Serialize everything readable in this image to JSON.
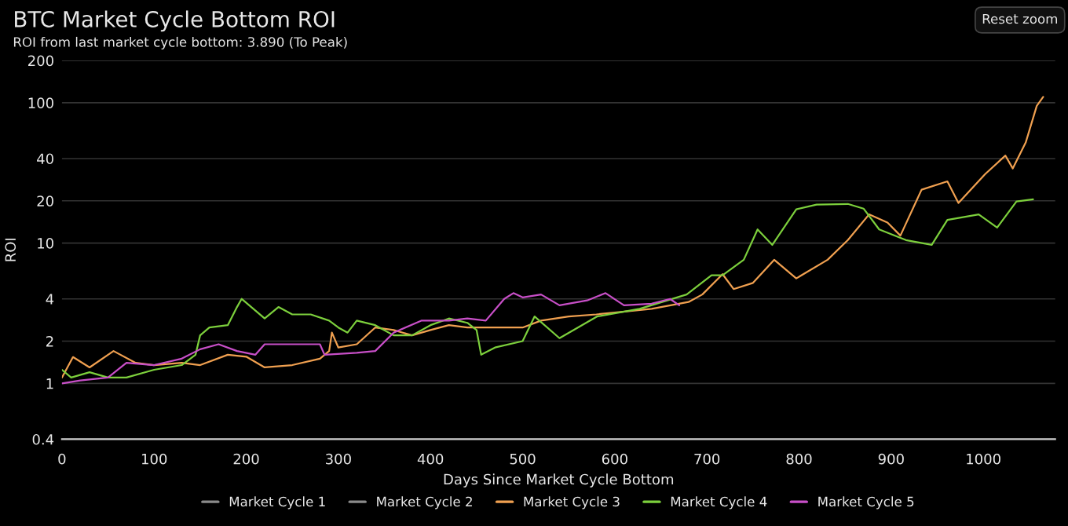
{
  "chart_data": {
    "type": "line",
    "title": "BTC Market Cycle Bottom ROI",
    "subtitle": "ROI from last market cycle bottom: 3.890 (To Peak)",
    "xlabel": "Days Since Market Cycle Bottom",
    "ylabel": "ROI",
    "annotations": [
      "Reset zoom"
    ],
    "log": "y",
    "grid": "y",
    "legend": "bottom",
    "line_style": "solid",
    "marker": "none",
    "xlim": [
      0,
      1078
    ],
    "xticks": [
      0,
      100,
      200,
      300,
      400,
      500,
      600,
      700,
      800,
      900,
      1000
    ],
    "ylim": [
      0.4,
      200
    ],
    "yticks": [
      0.4,
      1,
      2,
      4,
      10,
      20,
      40,
      100,
      200
    ],
    "series": [
      {
        "name": "Market Cycle 1",
        "color": "#8a8a8a"
      },
      {
        "name": "Market Cycle 2",
        "color": "#8a8a8a"
      },
      {
        "name": "Market Cycle 3",
        "color": "#f0a050",
        "x": [
          0,
          12,
          30,
          56,
          80,
          100,
          130,
          150,
          180,
          200,
          220,
          250,
          280,
          290,
          293,
          300,
          320,
          340,
          360,
          380,
          400,
          420,
          440,
          470,
          500,
          520,
          550,
          580,
          600,
          640,
          680,
          695,
          717,
          729,
          750,
          773,
          797,
          831,
          853,
          876,
          896,
          910,
          933,
          961,
          973,
          1002,
          1024,
          1032,
          1046,
          1058,
          1065
        ],
        "values": [
          1.1,
          1.54,
          1.3,
          1.7,
          1.4,
          1.35,
          1.4,
          1.35,
          1.6,
          1.55,
          1.3,
          1.35,
          1.5,
          1.7,
          2.3,
          1.8,
          1.9,
          2.5,
          2.4,
          2.2,
          2.4,
          2.6,
          2.5,
          2.5,
          2.5,
          2.8,
          3.0,
          3.1,
          3.2,
          3.4,
          3.8,
          4.3,
          6,
          4.7,
          5.2,
          7.6,
          5.6,
          7.6,
          10.5,
          16,
          14,
          11.3,
          24,
          27.5,
          19.3,
          31,
          42,
          34,
          52,
          95,
          110
        ]
      },
      {
        "name": "Market Cycle 4",
        "color": "#7ccf3c",
        "x": [
          0,
          10,
          30,
          50,
          70,
          100,
          130,
          145,
          150,
          160,
          180,
          190,
          195,
          210,
          220,
          235,
          250,
          270,
          290,
          300,
          310,
          320,
          340,
          360,
          380,
          400,
          420,
          440,
          450,
          455,
          470,
          500,
          513,
          540,
          581,
          627,
          678,
          705,
          717,
          740,
          755,
          771,
          797,
          819,
          853,
          870,
          887,
          916,
          944,
          961,
          995,
          1015,
          1036,
          1054
        ],
        "values": [
          1.25,
          1.1,
          1.2,
          1.1,
          1.1,
          1.25,
          1.35,
          1.6,
          2.2,
          2.5,
          2.6,
          3.5,
          4.0,
          3.3,
          2.9,
          3.5,
          3.1,
          3.1,
          2.8,
          2.5,
          2.3,
          2.8,
          2.6,
          2.2,
          2.2,
          2.6,
          2.9,
          2.7,
          2.4,
          1.6,
          1.8,
          2.0,
          3.0,
          2.1,
          3.0,
          3.4,
          4.3,
          5.9,
          5.9,
          7.6,
          12.5,
          9.7,
          17.4,
          18.8,
          19,
          17.6,
          12.5,
          10.5,
          9.7,
          14.6,
          16,
          12.9,
          19.8,
          20.5
        ]
      },
      {
        "name": "Market Cycle 5",
        "color": "#c84fc8",
        "x": [
          0,
          20,
          50,
          70,
          100,
          130,
          150,
          170,
          190,
          210,
          220,
          250,
          280,
          285,
          320,
          340,
          360,
          390,
          420,
          440,
          460,
          480,
          490,
          500,
          520,
          540,
          570,
          590,
          610,
          640,
          660,
          670
        ],
        "values": [
          1.0,
          1.05,
          1.1,
          1.4,
          1.35,
          1.5,
          1.75,
          1.9,
          1.7,
          1.6,
          1.9,
          1.9,
          1.9,
          1.6,
          1.65,
          1.7,
          2.3,
          2.8,
          2.8,
          2.9,
          2.8,
          4.0,
          4.4,
          4.1,
          4.3,
          3.6,
          3.9,
          4.4,
          3.6,
          3.7,
          4.0,
          3.6
        ]
      }
    ]
  }
}
